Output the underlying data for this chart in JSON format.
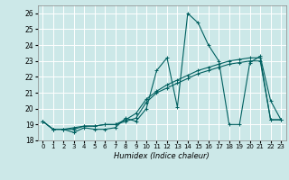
{
  "xlabel": "Humidex (Indice chaleur)",
  "xlim": [
    -0.5,
    23.5
  ],
  "ylim": [
    18,
    26.5
  ],
  "yticks": [
    18,
    19,
    20,
    21,
    22,
    23,
    24,
    25,
    26
  ],
  "xticks": [
    0,
    1,
    2,
    3,
    4,
    5,
    6,
    7,
    8,
    9,
    10,
    11,
    12,
    13,
    14,
    15,
    16,
    17,
    18,
    19,
    20,
    21,
    22,
    23
  ],
  "background_color": "#cce8e8",
  "grid_color": "#ffffff",
  "line_color": "#006060",
  "series1": [
    19.2,
    18.7,
    18.7,
    18.5,
    18.8,
    18.7,
    18.7,
    18.8,
    19.4,
    19.2,
    20.0,
    22.4,
    23.2,
    20.1,
    26.0,
    25.4,
    24.0,
    23.0,
    19.0,
    19.0,
    22.9,
    23.3,
    20.5,
    19.3
  ],
  "series2": [
    19.2,
    18.7,
    18.7,
    18.8,
    18.9,
    18.9,
    19.0,
    19.0,
    19.3,
    19.7,
    20.6,
    21.1,
    21.5,
    21.8,
    22.1,
    22.4,
    22.6,
    22.8,
    23.0,
    23.1,
    23.2,
    23.2,
    19.3,
    19.3
  ],
  "series3": [
    19.2,
    18.7,
    18.7,
    18.7,
    18.9,
    18.9,
    19.0,
    19.0,
    19.2,
    19.4,
    20.4,
    21.0,
    21.3,
    21.6,
    21.9,
    22.2,
    22.4,
    22.6,
    22.8,
    22.9,
    23.0,
    23.0,
    19.3,
    19.3
  ]
}
